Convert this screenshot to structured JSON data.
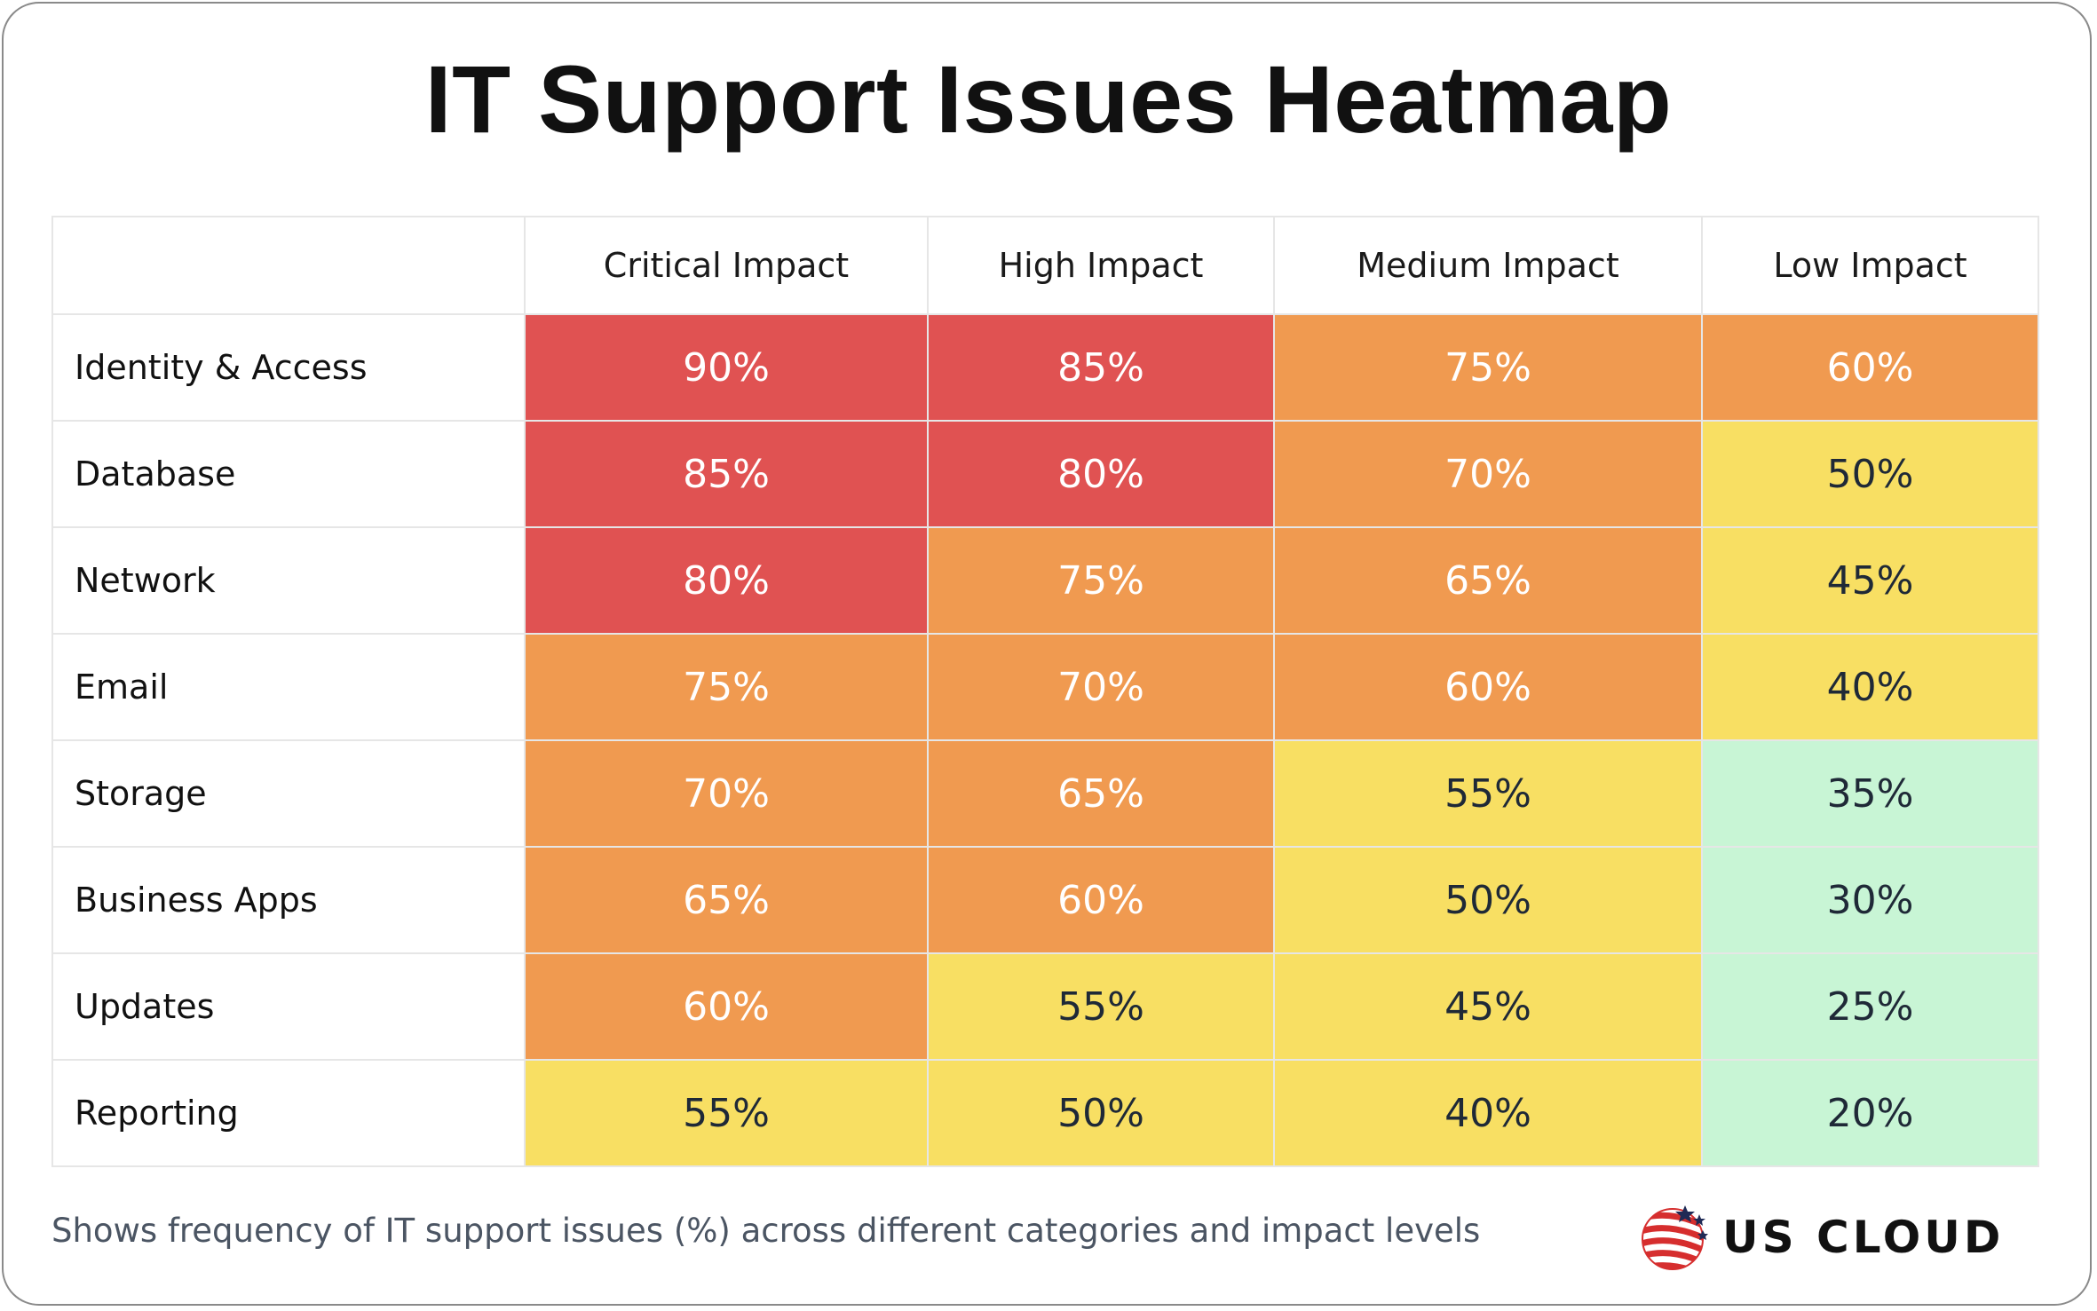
{
  "chart_data": {
    "type": "heatmap",
    "title": "IT Support Issues Heatmap",
    "columns": [
      "Critical Impact",
      "High Impact",
      "Medium Impact",
      "Low Impact"
    ],
    "rows": [
      "Identity & Access",
      "Database",
      "Network",
      "Email",
      "Storage",
      "Business Apps",
      "Updates",
      "Reporting"
    ],
    "values": [
      [
        90,
        85,
        75,
        60
      ],
      [
        85,
        80,
        70,
        50
      ],
      [
        80,
        75,
        65,
        45
      ],
      [
        75,
        70,
        60,
        40
      ],
      [
        70,
        65,
        55,
        35
      ],
      [
        65,
        60,
        50,
        30
      ],
      [
        60,
        55,
        45,
        25
      ],
      [
        55,
        50,
        40,
        20
      ]
    ],
    "value_suffix": "%",
    "color_scale": [
      {
        "min": 80,
        "max": 100,
        "fill": "#e05252",
        "text": "#ffffff"
      },
      {
        "min": 60,
        "max": 79,
        "fill": "#f09a50",
        "text": "#ffffff"
      },
      {
        "min": 40,
        "max": 59,
        "fill": "#f8df63",
        "text": "#1f2937"
      },
      {
        "min": 0,
        "max": 39,
        "fill": "#c8f5d5",
        "text": "#1f2937"
      }
    ]
  },
  "footer": {
    "note": "Shows frequency of IT support issues (%) across different categories and impact levels"
  },
  "logo": {
    "text": "US CLOUD",
    "icon": "globe-flag-icon",
    "colors": {
      "red": "#d62e2e",
      "navy": "#1f2a55"
    }
  }
}
